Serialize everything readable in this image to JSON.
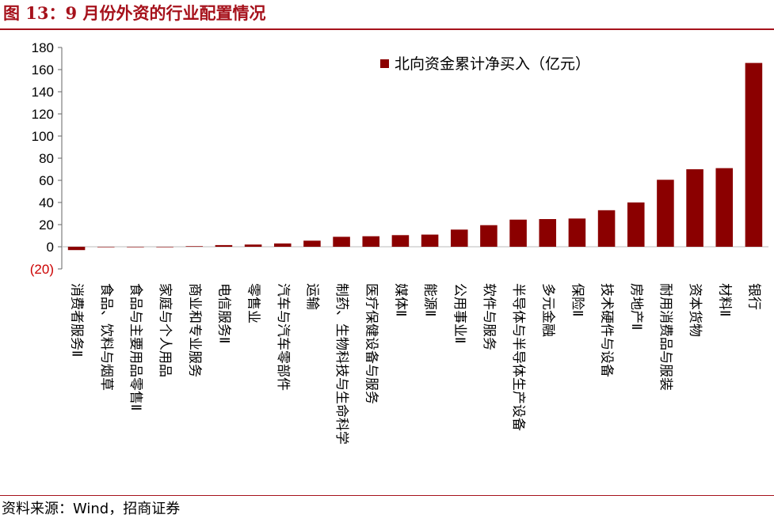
{
  "figure": {
    "title": "图 13：9 月份外资的行业配置情况",
    "source": "资料来源：Wind，招商证券"
  },
  "colors": {
    "accent": "#a6121c",
    "bar": "#8b0000",
    "negative_label": "#cc0000"
  },
  "chart_data": {
    "type": "bar",
    "title": "",
    "xlabel": "",
    "ylabel": "",
    "ylim": [
      -20,
      180
    ],
    "yticks": [
      -20,
      0,
      20,
      40,
      60,
      80,
      100,
      120,
      140,
      160,
      180
    ],
    "ytick_labels": [
      "(20)",
      "0",
      "20",
      "40",
      "60",
      "80",
      "100",
      "120",
      "140",
      "160",
      "180"
    ],
    "legend": {
      "label": "北向资金累计净买入（亿元）",
      "position": "top-right"
    },
    "grid": false,
    "categories": [
      "消费者服务Ⅱ",
      "食品、饮料与烟草",
      "食品与主要用品零售Ⅱ",
      "家庭与个人用品",
      "商业和专业服务",
      "电信服务Ⅱ",
      "零售业",
      "汽车与汽车零部件",
      "运输",
      "制药、生物科技与生命科学",
      "医疗保健设备与服务",
      "媒体Ⅱ",
      "能源Ⅱ",
      "公用事业Ⅱ",
      "软件与服务",
      "半导体与半导体生产设备",
      "多元金融",
      "保险Ⅱ",
      "技术硬件与设备",
      "房地产Ⅱ",
      "耐用消费品与服装",
      "资本货物",
      "材料Ⅱ",
      "银行"
    ],
    "series": [
      {
        "name": "北向资金累计净买入（亿元）",
        "values": [
          -3,
          0,
          0,
          0,
          0.5,
          1.5,
          2,
          3,
          5.5,
          9,
          9.5,
          10.5,
          11,
          15.5,
          19.5,
          24.5,
          25,
          25.5,
          33,
          40,
          60.5,
          70,
          71,
          166
        ]
      }
    ]
  }
}
